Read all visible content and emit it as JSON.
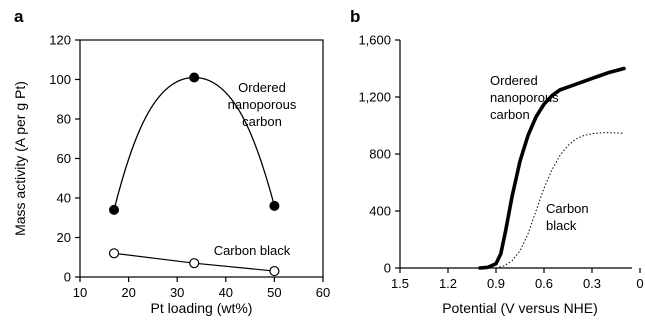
{
  "chart_data": [
    {
      "panel_label": "a",
      "type": "line",
      "xlabel": "Pt loading (wt%)",
      "ylabel": "Mass activity (A per g Pt)",
      "xlim": [
        10,
        60
      ],
      "ylim": [
        0,
        120
      ],
      "x_ticks": [
        "10",
        "20",
        "30",
        "40",
        "50",
        "60"
      ],
      "y_ticks": [
        "0",
        "20",
        "40",
        "60",
        "80",
        "100",
        "120"
      ],
      "series": [
        {
          "name": "Ordered nanoporous carbon",
          "label_lines": [
            "Ordered",
            "nanoporous",
            "carbon"
          ],
          "marker": "filled-circle",
          "x": [
            17,
            33.5,
            50
          ],
          "y": [
            34,
            101,
            36
          ]
        },
        {
          "name": "Carbon black",
          "label_lines": [
            "Carbon black"
          ],
          "marker": "open-circle",
          "x": [
            17,
            33.5,
            50
          ],
          "y": [
            12,
            7,
            3
          ]
        }
      ],
      "grid": false,
      "legend": "inline labels"
    },
    {
      "panel_label": "b",
      "type": "line",
      "xlabel": "Potential (V versus NHE)",
      "ylabel": "",
      "xlim": [
        1.5,
        0.05
      ],
      "ylim": [
        0,
        1600
      ],
      "x_ticks": [
        "1.5",
        "1.2",
        "0.9",
        "0.6",
        "0.3",
        "0"
      ],
      "y_ticks": [
        "0",
        "400",
        "800",
        "1,200",
        "1,600"
      ],
      "series": [
        {
          "name": "Ordered nanoporous carbon",
          "label_lines": [
            "Ordered",
            "nanoporous",
            "carbon"
          ],
          "style": "thick-solid",
          "x": [
            1.0,
            0.95,
            0.9,
            0.87,
            0.84,
            0.8,
            0.75,
            0.7,
            0.65,
            0.6,
            0.55,
            0.5,
            0.45,
            0.4,
            0.35,
            0.3,
            0.25,
            0.2,
            0.15,
            0.1
          ],
          "y": [
            0,
            5,
            30,
            100,
            260,
            500,
            750,
            930,
            1060,
            1150,
            1210,
            1250,
            1270,
            1290,
            1310,
            1330,
            1350,
            1370,
            1385,
            1400
          ]
        },
        {
          "name": "Carbon black",
          "label_lines": [
            "Carbon",
            "black"
          ],
          "style": "dotted",
          "x": [
            0.9,
            0.85,
            0.8,
            0.75,
            0.7,
            0.65,
            0.6,
            0.55,
            0.5,
            0.45,
            0.4,
            0.35,
            0.3,
            0.25,
            0.2,
            0.15,
            0.1
          ],
          "y": [
            0,
            15,
            50,
            120,
            240,
            400,
            560,
            690,
            790,
            860,
            905,
            930,
            942,
            948,
            950,
            948,
            945
          ]
        }
      ],
      "grid": false,
      "legend": "inline labels"
    }
  ]
}
